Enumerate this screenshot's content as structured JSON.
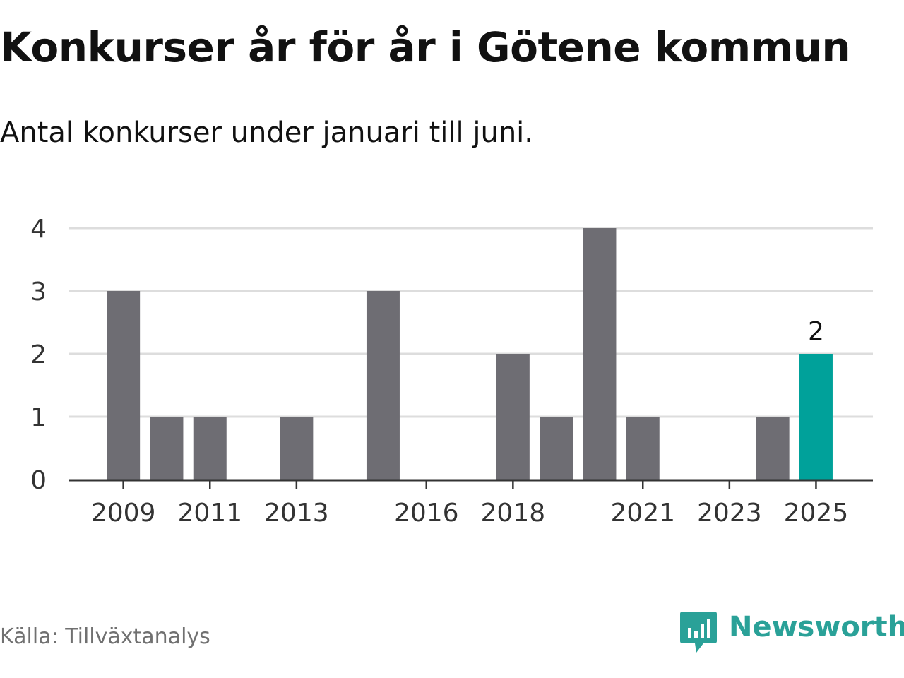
{
  "title": "Konkurser år för år i Götene kommun",
  "subtitle": "Antal konkurser under januari till juni.",
  "source": "Källa: Tillväxtanalys",
  "brand": {
    "name": "Newsworthy",
    "icon": "newsworthy-logo-icon",
    "color": "#2aa198"
  },
  "colors": {
    "bar": "#6e6d73",
    "highlight": "#00a19a",
    "grid": "#dddddd",
    "axis": "#333333",
    "text": "#333333"
  },
  "chart_data": {
    "type": "bar",
    "categories": [
      "2009",
      "2010",
      "2011",
      "2012",
      "2013",
      "2014",
      "2015",
      "2016",
      "2017",
      "2018",
      "2019",
      "2020",
      "2021",
      "2022",
      "2023",
      "2024",
      "2025"
    ],
    "values": [
      3,
      1,
      1,
      0,
      1,
      0,
      3,
      0,
      0,
      2,
      1,
      4,
      1,
      0,
      0,
      1,
      2
    ],
    "x_tick_labels": [
      "2009",
      "2011",
      "2013",
      "2016",
      "2018",
      "2021",
      "2023",
      "2025"
    ],
    "y_ticks": [
      "0",
      "1",
      "2",
      "3",
      "4"
    ],
    "ylim": [
      0,
      4
    ],
    "highlight": {
      "category": "2025",
      "label": "2"
    },
    "grid": true,
    "legend": "none",
    "xlabel": "",
    "ylabel": ""
  }
}
